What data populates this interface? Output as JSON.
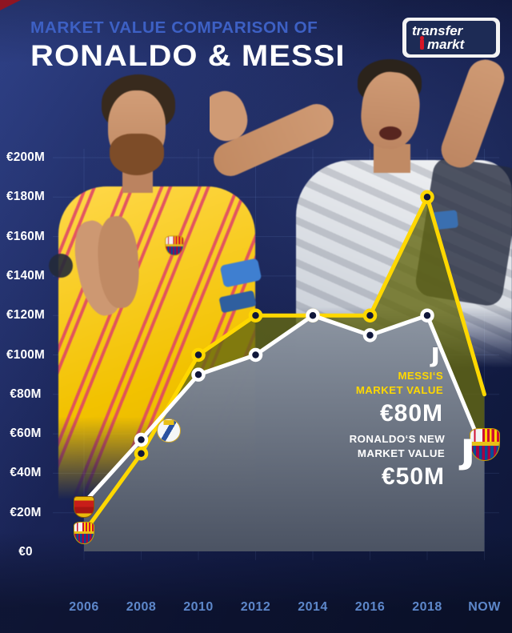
{
  "header": {
    "title_line1": "MARKET VALUE COMPARISON OF",
    "title_line2": "RONALDO & MESSI"
  },
  "brand": {
    "logo_line1": "transfer",
    "logo_line2": "markt"
  },
  "chart_data": {
    "type": "line",
    "title": "Market value comparison of Ronaldo & Messi",
    "x_categories": [
      "2006",
      "2008",
      "2010",
      "2012",
      "2014",
      "2016",
      "2018",
      "NOW"
    ],
    "y_ticks": [
      {
        "label": "€200M",
        "value": 200
      },
      {
        "label": "€180M",
        "value": 180
      },
      {
        "label": "€160M",
        "value": 160
      },
      {
        "label": "€140M",
        "value": 140
      },
      {
        "label": "€120M",
        "value": 120
      },
      {
        "label": "€100M",
        "value": 100
      },
      {
        "label": "€80M",
        "value": 80
      },
      {
        "label": "€60M",
        "value": 60
      },
      {
        "label": "€40M",
        "value": 40
      },
      {
        "label": "€20M",
        "value": 20
      },
      {
        "label": "€0",
        "value": 0
      }
    ],
    "y_unit": "million euro",
    "ylim": [
      0,
      210
    ],
    "grid": true,
    "legend_position": "none",
    "series": [
      {
        "name": "Messi market value",
        "color": "#ffd800",
        "values": [
          10,
          50,
          100,
          120,
          120,
          120,
          180,
          80
        ]
      },
      {
        "name": "Ronaldo market value",
        "color": "#ffffff",
        "values": [
          25,
          57,
          90,
          100,
          120,
          110,
          120,
          50
        ]
      }
    ],
    "annotations": [
      {
        "target": "messi",
        "line1": "MESSI‘S",
        "line2": "MARKET VALUE",
        "value": "€80M"
      },
      {
        "target": "ronaldo",
        "line1": "RONALDO‘S NEW",
        "line2": "MARKET VALUE",
        "value": "€50M"
      }
    ],
    "event_markers": [
      {
        "club": "Manchester United",
        "series": "ronaldo",
        "at": "2006"
      },
      {
        "club": "FC Barcelona",
        "series": "messi",
        "at": "2006"
      },
      {
        "club": "Real Madrid",
        "series": "ronaldo",
        "at": "2009"
      },
      {
        "club": "Juventus",
        "series": "ronaldo",
        "at": "2018"
      },
      {
        "club": "FC Barcelona",
        "series": "messi",
        "at": "NOW"
      },
      {
        "club": "Juventus",
        "series": "ronaldo",
        "at": "NOW"
      }
    ]
  },
  "icons": {
    "juventus_glyph": "JJ"
  }
}
